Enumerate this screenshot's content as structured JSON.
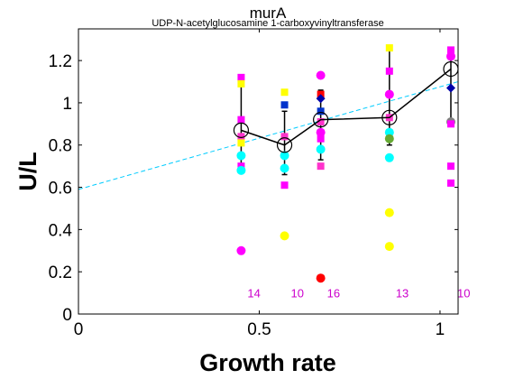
{
  "chart_data": {
    "type": "scatter",
    "title": "murA",
    "subtitle": "UDP-N-acetylglucosamine 1-carboxyvinyltransferase",
    "xlabel": "Growth rate",
    "ylabel": "U/L",
    "xlim": [
      0,
      1.05
    ],
    "ylim": [
      0,
      1.35
    ],
    "xticks": [
      0,
      0.5,
      1
    ],
    "xtick_labels": [
      "0",
      "0.5",
      "1"
    ],
    "yticks": [
      0,
      0.2,
      0.4,
      0.6,
      0.8,
      1.0,
      1.2
    ],
    "ytick_labels": [
      "0",
      "0.2",
      "0.4",
      "0.6",
      "0.8",
      "1",
      "1.2"
    ],
    "grid": false,
    "colors": {
      "yellow": "#ffff00",
      "magenta": "#ff00ff",
      "pink": "#ff33cc",
      "cyan": "#00ffff",
      "blue": "#0033cc",
      "darkblue": "#0000aa",
      "red": "#ff0000",
      "gray": "#808080",
      "green": "#66aa33",
      "trend": "#00ccff",
      "mean": "#000000",
      "nlabel": "#cc00cc"
    },
    "trend_line": {
      "x": [
        0,
        1.05
      ],
      "y": [
        0.59,
        1.1
      ]
    },
    "means": {
      "x": [
        0.45,
        0.57,
        0.67,
        0.86,
        1.03
      ],
      "y": [
        0.87,
        0.8,
        0.92,
        0.93,
        1.16
      ],
      "err_low": [
        0.7,
        0.66,
        0.73,
        0.8,
        0.9
      ],
      "err_high": [
        1.1,
        0.96,
        1.06,
        1.27,
        1.26
      ]
    },
    "points": [
      {
        "x": 0.45,
        "y": 1.12,
        "marker": "square",
        "color": "magenta"
      },
      {
        "x": 0.45,
        "y": 1.09,
        "marker": "square",
        "color": "yellow"
      },
      {
        "x": 0.45,
        "y": 0.92,
        "marker": "square",
        "color": "magenta"
      },
      {
        "x": 0.45,
        "y": 0.84,
        "marker": "square",
        "color": "pink"
      },
      {
        "x": 0.45,
        "y": 0.81,
        "marker": "square",
        "color": "yellow"
      },
      {
        "x": 0.45,
        "y": 0.75,
        "marker": "circle",
        "color": "cyan"
      },
      {
        "x": 0.45,
        "y": 0.7,
        "marker": "square",
        "color": "magenta"
      },
      {
        "x": 0.45,
        "y": 0.68,
        "marker": "circle",
        "color": "cyan"
      },
      {
        "x": 0.45,
        "y": 0.3,
        "marker": "circle",
        "color": "magenta"
      },
      {
        "x": 0.57,
        "y": 1.05,
        "marker": "square",
        "color": "yellow"
      },
      {
        "x": 0.57,
        "y": 0.99,
        "marker": "square",
        "color": "blue"
      },
      {
        "x": 0.57,
        "y": 0.84,
        "marker": "square",
        "color": "pink"
      },
      {
        "x": 0.57,
        "y": 0.75,
        "marker": "circle",
        "color": "cyan"
      },
      {
        "x": 0.57,
        "y": 0.69,
        "marker": "circle",
        "color": "cyan"
      },
      {
        "x": 0.57,
        "y": 0.61,
        "marker": "square",
        "color": "magenta"
      },
      {
        "x": 0.57,
        "y": 0.37,
        "marker": "circle",
        "color": "yellow"
      },
      {
        "x": 0.67,
        "y": 1.13,
        "marker": "circle",
        "color": "magenta"
      },
      {
        "x": 0.67,
        "y": 1.04,
        "marker": "square",
        "color": "red"
      },
      {
        "x": 0.67,
        "y": 1.02,
        "marker": "diamond",
        "color": "darkblue"
      },
      {
        "x": 0.67,
        "y": 0.96,
        "marker": "square",
        "color": "blue"
      },
      {
        "x": 0.67,
        "y": 0.91,
        "marker": "square",
        "color": "pink"
      },
      {
        "x": 0.67,
        "y": 0.86,
        "marker": "circle",
        "color": "magenta"
      },
      {
        "x": 0.67,
        "y": 0.83,
        "marker": "square",
        "color": "magenta"
      },
      {
        "x": 0.67,
        "y": 0.78,
        "marker": "circle",
        "color": "cyan"
      },
      {
        "x": 0.67,
        "y": 0.7,
        "marker": "square",
        "color": "pink"
      },
      {
        "x": 0.67,
        "y": 0.17,
        "marker": "circle",
        "color": "red"
      },
      {
        "x": 0.86,
        "y": 1.26,
        "marker": "square",
        "color": "yellow"
      },
      {
        "x": 0.86,
        "y": 1.15,
        "marker": "square",
        "color": "magenta"
      },
      {
        "x": 0.86,
        "y": 1.04,
        "marker": "circle",
        "color": "magenta"
      },
      {
        "x": 0.86,
        "y": 0.93,
        "marker": "square",
        "color": "pink"
      },
      {
        "x": 0.86,
        "y": 0.86,
        "marker": "circle",
        "color": "cyan"
      },
      {
        "x": 0.86,
        "y": 0.83,
        "marker": "circle",
        "color": "green"
      },
      {
        "x": 0.86,
        "y": 0.74,
        "marker": "circle",
        "color": "cyan"
      },
      {
        "x": 0.86,
        "y": 0.48,
        "marker": "circle",
        "color": "yellow"
      },
      {
        "x": 0.86,
        "y": 0.32,
        "marker": "circle",
        "color": "yellow"
      },
      {
        "x": 1.03,
        "y": 1.25,
        "marker": "square",
        "color": "magenta"
      },
      {
        "x": 1.03,
        "y": 1.22,
        "marker": "circle",
        "color": "magenta"
      },
      {
        "x": 1.03,
        "y": 1.07,
        "marker": "diamond",
        "color": "darkblue"
      },
      {
        "x": 1.03,
        "y": 0.91,
        "marker": "circle",
        "color": "gray"
      },
      {
        "x": 1.03,
        "y": 0.9,
        "marker": "square",
        "color": "magenta"
      },
      {
        "x": 1.03,
        "y": 0.7,
        "marker": "square",
        "color": "magenta"
      },
      {
        "x": 1.03,
        "y": 0.62,
        "marker": "square",
        "color": "magenta"
      }
    ],
    "n_labels": [
      {
        "x": 0.45,
        "text": "14"
      },
      {
        "x": 0.57,
        "text": "10"
      },
      {
        "x": 0.67,
        "text": "16"
      },
      {
        "x": 0.86,
        "text": "13"
      },
      {
        "x": 1.03,
        "text": "10"
      }
    ],
    "n_label_y": 0.1
  }
}
